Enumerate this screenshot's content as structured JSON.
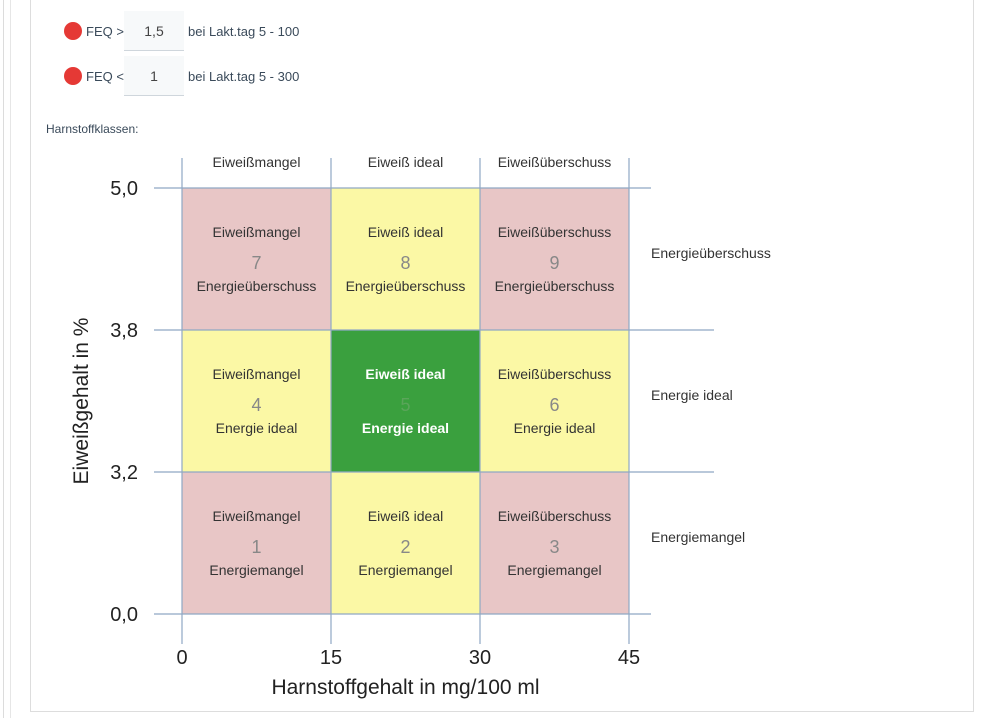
{
  "feq_rules": [
    {
      "label": "FEQ >",
      "value": "1,5",
      "suffix": "bei Lakt.tag 5 - 100",
      "status_color": "#e53935"
    },
    {
      "label": "FEQ <",
      "value": "1",
      "suffix": "bei Lakt.tag 5 - 300",
      "status_color": "#e53935"
    }
  ],
  "section": {
    "label": "Harnstoffklassen:"
  },
  "chart_data": {
    "type": "heatmap",
    "xlabel": "Harnstoffgehalt in mg/100 ml",
    "ylabel": "Eiweißgehalt in %",
    "x_ticks": [
      "0",
      "15",
      "30",
      "45"
    ],
    "y_ticks": [
      "5,0",
      "3,8",
      "3,2",
      "0,0"
    ],
    "column_headers": [
      "Eiweißmangel",
      "Eiweiß ideal",
      "Eiweißüberschuss"
    ],
    "row_headers": [
      "Energieüberschuss",
      "Energie ideal",
      "Energiemangel"
    ],
    "colors": {
      "red": "#e8c6c6",
      "yellow": "#fbf8a5",
      "green": "#3aa03e"
    },
    "cells": [
      {
        "row": 0,
        "col": 0,
        "number": "7",
        "top": "Eiweißmangel",
        "bottom": "Energieüberschuss",
        "color": "red"
      },
      {
        "row": 0,
        "col": 1,
        "number": "8",
        "top": "Eiweiß ideal",
        "bottom": "Energieüberschuss",
        "color": "yellow"
      },
      {
        "row": 0,
        "col": 2,
        "number": "9",
        "top": "Eiweißüberschuss",
        "bottom": "Energieüberschuss",
        "color": "red"
      },
      {
        "row": 1,
        "col": 0,
        "number": "4",
        "top": "Eiweißmangel",
        "bottom": "Energie ideal",
        "color": "yellow"
      },
      {
        "row": 1,
        "col": 1,
        "number": "5",
        "top": "Eiweiß ideal",
        "bottom": "Energie ideal",
        "color": "green"
      },
      {
        "row": 1,
        "col": 2,
        "number": "6",
        "top": "Eiweißüberschuss",
        "bottom": "Energie ideal",
        "color": "yellow"
      },
      {
        "row": 2,
        "col": 0,
        "number": "1",
        "top": "Eiweißmangel",
        "bottom": "Energiemangel",
        "color": "red"
      },
      {
        "row": 2,
        "col": 1,
        "number": "2",
        "top": "Eiweiß ideal",
        "bottom": "Energiemangel",
        "color": "yellow"
      },
      {
        "row": 2,
        "col": 2,
        "number": "3",
        "top": "Eiweißüberschuss",
        "bottom": "Energiemangel",
        "color": "red"
      }
    ]
  }
}
